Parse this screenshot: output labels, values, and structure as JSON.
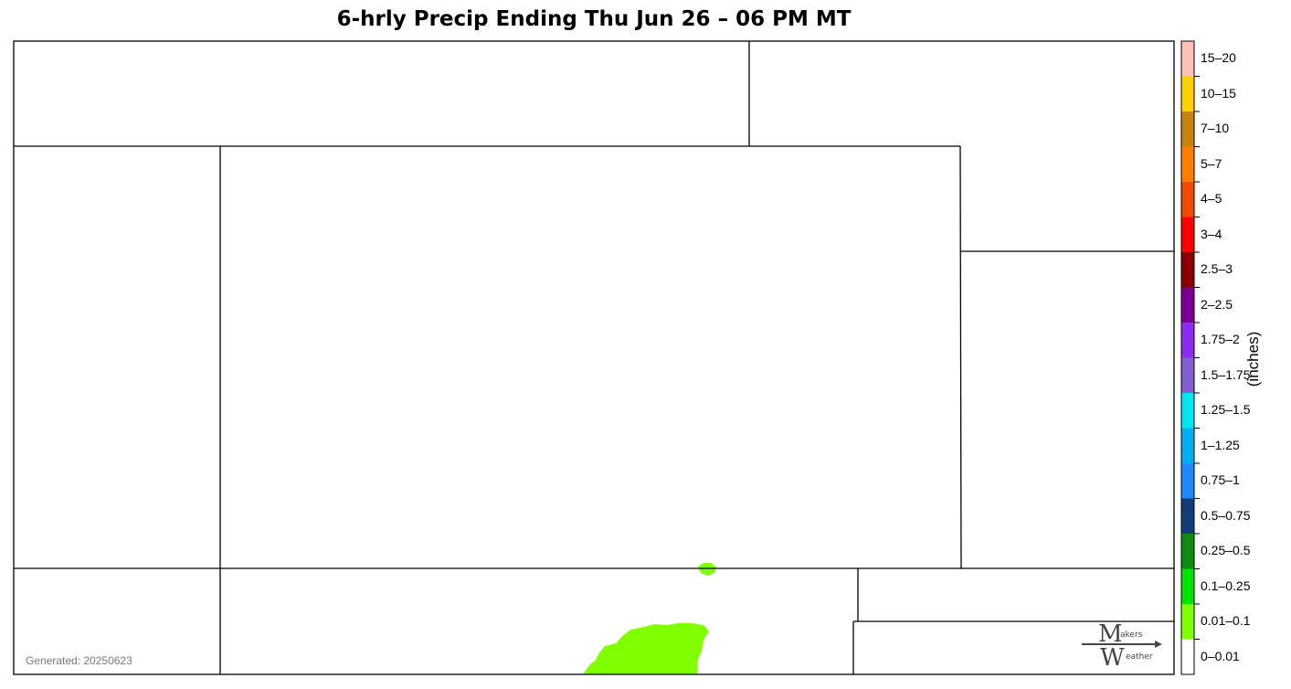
{
  "title": "6-hrly Precip Ending Thu Jun 26 – 06 PM MT",
  "generated": "Generated: 20250623",
  "legend": {
    "units": "(inches)",
    "bins": [
      {
        "label": "15–20",
        "color": "#fcc2b8"
      },
      {
        "label": "10–15",
        "color": "#ffd000"
      },
      {
        "label": "7–10",
        "color": "#c88410"
      },
      {
        "label": "5–7",
        "color": "#ff7d00"
      },
      {
        "label": "4–5",
        "color": "#ee4a00"
      },
      {
        "label": "3–4",
        "color": "#ff0000"
      },
      {
        "label": "2.5–3",
        "color": "#880000"
      },
      {
        "label": "2–2.5",
        "color": "#7a0090"
      },
      {
        "label": "1.75–2",
        "color": "#8c2cf0"
      },
      {
        "label": "1.5–1.75",
        "color": "#8060d0"
      },
      {
        "label": "1.25–1.5",
        "color": "#00e6f0"
      },
      {
        "label": "1–1.25",
        "color": "#00aef0"
      },
      {
        "label": "0.75–1",
        "color": "#1e88ff"
      },
      {
        "label": "0.5–0.75",
        "color": "#123c7a"
      },
      {
        "label": "0.25–0.5",
        "color": "#0e8a0e"
      },
      {
        "label": "0.1–0.25",
        "color": "#00e200"
      },
      {
        "label": "0.01–0.1",
        "color": "#80ff00"
      },
      {
        "label": "0–0.01",
        "color": "#ffffff"
      }
    ]
  },
  "map": {
    "precip_color": "#80ff00"
  },
  "logo": {
    "top_text": "akers",
    "bottom_text": "eather"
  }
}
